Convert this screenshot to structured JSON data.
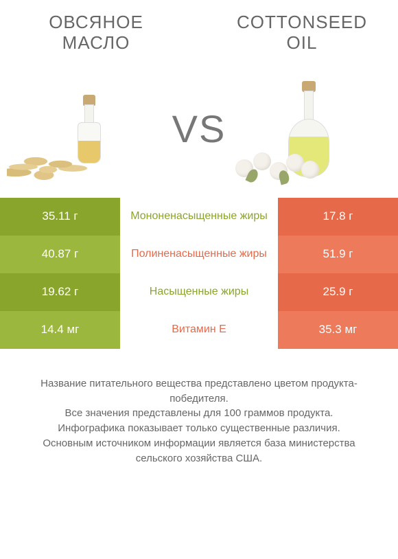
{
  "left": {
    "title": "ОВСЯНОЕ МАСЛО"
  },
  "right": {
    "title": "COTTONSEED OIL"
  },
  "vs": "VS",
  "colors": {
    "left_dark": "#8aa52c",
    "left_light": "#9bb73e",
    "right_dark": "#e66a4a",
    "right_light": "#ed7a5a",
    "mid_left": "#8aa52c",
    "mid_right": "#e66a4a",
    "oil_left": "#e7c96b",
    "oil_right": "#e4e879"
  },
  "rows": [
    {
      "left": "35.11 г",
      "mid": "Мононенасыщенные жиры",
      "right": "17.8 г",
      "winner": "left"
    },
    {
      "left": "40.87 г",
      "mid": "Полиненасыщенные жиры",
      "right": "51.9 г",
      "winner": "right"
    },
    {
      "left": "19.62 г",
      "mid": "Насыщенные жиры",
      "right": "25.9 г",
      "winner": "left"
    },
    {
      "left": "14.4 мг",
      "mid": "Витамин E",
      "right": "35.3 мг",
      "winner": "right"
    }
  ],
  "footer": [
    "Название питательного вещества представлено цветом продукта-победителя.",
    "Все значения представлены для 100 граммов продукта.",
    "Инфографика показывает только существенные различия.",
    "Основным источником информации является база министерства сельского хозяйства США."
  ]
}
